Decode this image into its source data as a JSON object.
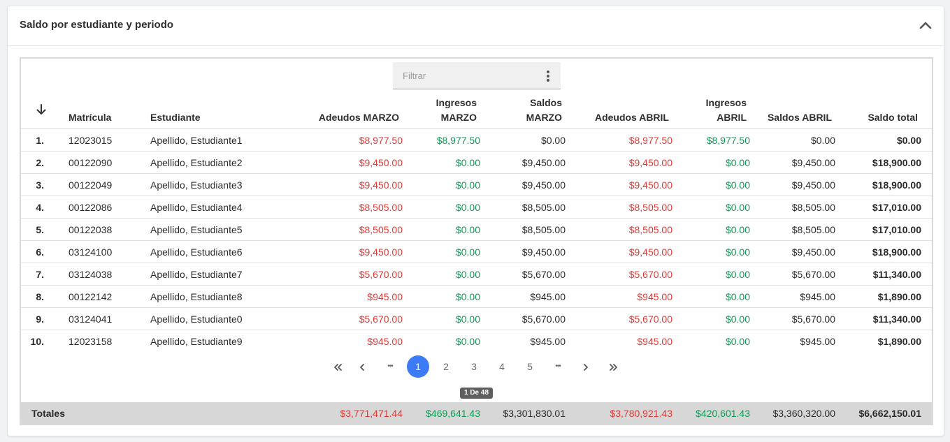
{
  "card": {
    "title": "Saldo por estudiante y periodo"
  },
  "filter": {
    "placeholder": "Filtrar"
  },
  "headers": {
    "matricula": "Matrícula",
    "estudiante": "Estudiante",
    "adeudos_marzo": "Adeudos MARZO",
    "ingresos_marzo_l1": "Ingresos",
    "ingresos_marzo_l2": "MARZO",
    "saldos_marzo_l1": "Saldos",
    "saldos_marzo_l2": "MARZO",
    "adeudos_abril": "Adeudos ABRIL",
    "ingresos_abril_l1": "Ingresos",
    "ingresos_abril_l2": "ABRIL",
    "saldos_abril": "Saldos ABRIL",
    "saldo_total": "Saldo total"
  },
  "rows": [
    {
      "n": "1.",
      "matricula": "12023015",
      "estudiante": "Apellido, Estudiante1",
      "adeudos_marzo": "$8,977.50",
      "ingresos_marzo": "$8,977.50",
      "saldos_marzo": "$0.00",
      "adeudos_abril": "$8,977.50",
      "ingresos_abril": "$8,977.50",
      "saldos_abril": "$0.00",
      "saldo_total": "$0.00"
    },
    {
      "n": "2.",
      "matricula": "00122090",
      "estudiante": "Apellido, Estudiante2",
      "adeudos_marzo": "$9,450.00",
      "ingresos_marzo": "$0.00",
      "saldos_marzo": "$9,450.00",
      "adeudos_abril": "$9,450.00",
      "ingresos_abril": "$0.00",
      "saldos_abril": "$9,450.00",
      "saldo_total": "$18,900.00"
    },
    {
      "n": "3.",
      "matricula": "00122049",
      "estudiante": "Apellido, Estudiante3",
      "adeudos_marzo": "$9,450.00",
      "ingresos_marzo": "$0.00",
      "saldos_marzo": "$9,450.00",
      "adeudos_abril": "$9,450.00",
      "ingresos_abril": "$0.00",
      "saldos_abril": "$9,450.00",
      "saldo_total": "$18,900.00"
    },
    {
      "n": "4.",
      "matricula": "00122086",
      "estudiante": "Apellido, Estudiante4",
      "adeudos_marzo": "$8,505.00",
      "ingresos_marzo": "$0.00",
      "saldos_marzo": "$8,505.00",
      "adeudos_abril": "$8,505.00",
      "ingresos_abril": "$0.00",
      "saldos_abril": "$8,505.00",
      "saldo_total": "$17,010.00"
    },
    {
      "n": "5.",
      "matricula": "00122038",
      "estudiante": "Apellido, Estudiante5",
      "adeudos_marzo": "$8,505.00",
      "ingresos_marzo": "$0.00",
      "saldos_marzo": "$8,505.00",
      "adeudos_abril": "$8,505.00",
      "ingresos_abril": "$0.00",
      "saldos_abril": "$8,505.00",
      "saldo_total": "$17,010.00"
    },
    {
      "n": "6.",
      "matricula": "03124100",
      "estudiante": "Apellido, Estudiante6",
      "adeudos_marzo": "$9,450.00",
      "ingresos_marzo": "$0.00",
      "saldos_marzo": "$9,450.00",
      "adeudos_abril": "$9,450.00",
      "ingresos_abril": "$0.00",
      "saldos_abril": "$9,450.00",
      "saldo_total": "$18,900.00"
    },
    {
      "n": "7.",
      "matricula": "03124038",
      "estudiante": "Apellido, Estudiante7",
      "adeudos_marzo": "$5,670.00",
      "ingresos_marzo": "$0.00",
      "saldos_marzo": "$5,670.00",
      "adeudos_abril": "$5,670.00",
      "ingresos_abril": "$0.00",
      "saldos_abril": "$5,670.00",
      "saldo_total": "$11,340.00"
    },
    {
      "n": "8.",
      "matricula": "00122142",
      "estudiante": "Apellido, Estudiante8",
      "adeudos_marzo": "$945.00",
      "ingresos_marzo": "$0.00",
      "saldos_marzo": "$945.00",
      "adeudos_abril": "$945.00",
      "ingresos_abril": "$0.00",
      "saldos_abril": "$945.00",
      "saldo_total": "$1,890.00"
    },
    {
      "n": "9.",
      "matricula": "03124041",
      "estudiante": "Apellido, Estudiante0",
      "adeudos_marzo": "$5,670.00",
      "ingresos_marzo": "$0.00",
      "saldos_marzo": "$5,670.00",
      "adeudos_abril": "$5,670.00",
      "ingresos_abril": "$0.00",
      "saldos_abril": "$5,670.00",
      "saldo_total": "$11,340.00"
    },
    {
      "n": "10.",
      "matricula": "12023158",
      "estudiante": "Apellido, Estudiante9",
      "adeudos_marzo": "$945.00",
      "ingresos_marzo": "$0.00",
      "saldos_marzo": "$945.00",
      "adeudos_abril": "$945.00",
      "ingresos_abril": "$0.00",
      "saldos_abril": "$945.00",
      "saldo_total": "$1,890.00"
    }
  ],
  "pagination": {
    "ellipsis": "•••",
    "pages": [
      "1",
      "2",
      "3",
      "4",
      "5"
    ],
    "current": "1",
    "info": "1 De 48"
  },
  "totals": {
    "label": "Totales",
    "adeudos_marzo": "$3,771,471.44",
    "ingresos_marzo": "$469,641.43",
    "saldos_marzo": "$3,301,830.01",
    "adeudos_abril": "$3,780,921.43",
    "ingresos_abril": "$420,601.43",
    "saldos_abril": "$3,360,320.00",
    "saldo_total": "$6,662,150.01"
  },
  "colors": {
    "debt": "#e53935",
    "income": "#109a55",
    "active_page": "#3d7bf6"
  },
  "icons": {
    "collapse": "chevron-up-icon",
    "sort": "arrow-down-icon",
    "menu": "kebab-menu-icon"
  }
}
